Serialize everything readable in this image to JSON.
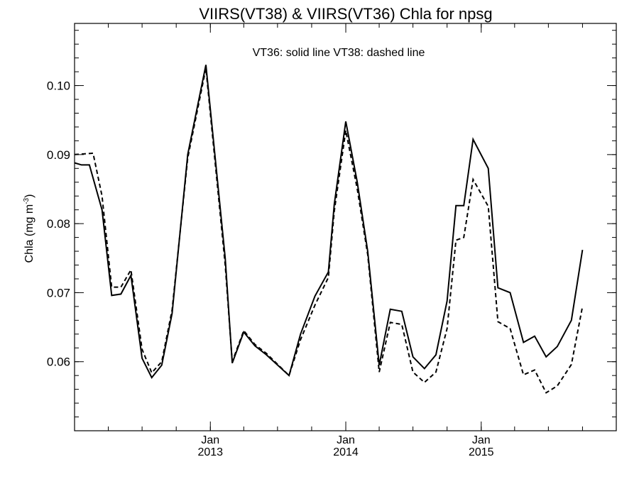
{
  "chart_data": {
    "type": "line",
    "title": "VIIRS(VT38) & VIIRS(VT36)  Chla for npsg",
    "annotation": "VT36: solid line   VT38: dashed line",
    "ylabel_main": "Chla (mg m",
    "ylabel_sup": "-3",
    "ylabel_close": ")",
    "ylim": [
      0.05,
      0.109
    ],
    "y_ticks": [
      {
        "value": 0.06,
        "label": "0.06"
      },
      {
        "value": 0.07,
        "label": "0.07"
      },
      {
        "value": 0.08,
        "label": "0.08"
      },
      {
        "value": 0.09,
        "label": "0.09"
      },
      {
        "value": 0.1,
        "label": "0.10"
      }
    ],
    "x_start": "2012-01-01",
    "x_end": "2015-12-31",
    "x_major_ticks": [
      {
        "date": "2013-01-01",
        "month": "Jan",
        "year": "2013"
      },
      {
        "date": "2014-01-01",
        "month": "Jan",
        "year": "2014"
      },
      {
        "date": "2015-01-01",
        "month": "Jan",
        "year": "2015"
      }
    ],
    "series": [
      {
        "name": "VT36",
        "style": "solid",
        "color": "#000000",
        "points": [
          [
            "2012-01-01",
            0.0888
          ],
          [
            "2012-01-20",
            0.0885
          ],
          [
            "2012-02-10",
            0.0885
          ],
          [
            "2012-03-15",
            0.082
          ],
          [
            "2012-04-10",
            0.0696
          ],
          [
            "2012-05-05",
            0.0698
          ],
          [
            "2012-06-01",
            0.0725
          ],
          [
            "2012-07-01",
            0.0605
          ],
          [
            "2012-07-27",
            0.0577
          ],
          [
            "2012-08-23",
            0.0595
          ],
          [
            "2012-09-20",
            0.067
          ],
          [
            "2012-11-01",
            0.09
          ],
          [
            "2012-12-20",
            0.103
          ],
          [
            "2013-02-10",
            0.075
          ],
          [
            "2013-03-01",
            0.0598
          ],
          [
            "2013-04-01",
            0.0643
          ],
          [
            "2013-05-01",
            0.0623
          ],
          [
            "2013-06-01",
            0.061
          ],
          [
            "2013-08-01",
            0.058
          ],
          [
            "2013-09-01",
            0.064
          ],
          [
            "2013-10-10",
            0.0695
          ],
          [
            "2013-11-15",
            0.073
          ],
          [
            "2013-12-01",
            0.0828
          ],
          [
            "2014-01-01",
            0.0948
          ],
          [
            "2014-02-01",
            0.086
          ],
          [
            "2014-03-01",
            0.076
          ],
          [
            "2014-04-01",
            0.0595
          ],
          [
            "2014-05-01",
            0.0676
          ],
          [
            "2014-06-01",
            0.0673
          ],
          [
            "2014-07-01",
            0.0607
          ],
          [
            "2014-08-01",
            0.059
          ],
          [
            "2014-09-01",
            0.061
          ],
          [
            "2014-10-01",
            0.0688
          ],
          [
            "2014-10-25",
            0.0826
          ],
          [
            "2014-11-15",
            0.0826
          ],
          [
            "2014-12-10",
            0.0922
          ],
          [
            "2015-01-20",
            0.088
          ],
          [
            "2015-02-15",
            0.0707
          ],
          [
            "2015-03-20",
            0.07
          ],
          [
            "2015-04-25",
            0.0628
          ],
          [
            "2015-05-25",
            0.0637
          ],
          [
            "2015-06-25",
            0.0607
          ],
          [
            "2015-07-25",
            0.0622
          ],
          [
            "2015-09-01",
            0.066
          ],
          [
            "2015-10-01",
            0.0762
          ]
        ]
      },
      {
        "name": "VT38",
        "style": "dashed",
        "color": "#000000",
        "points": [
          [
            "2012-01-01",
            0.09
          ],
          [
            "2012-02-20",
            0.0902
          ],
          [
            "2012-03-15",
            0.084
          ],
          [
            "2012-04-10",
            0.0708
          ],
          [
            "2012-05-05",
            0.0708
          ],
          [
            "2012-06-01",
            0.0733
          ],
          [
            "2012-07-01",
            0.0618
          ],
          [
            "2012-07-27",
            0.0584
          ],
          [
            "2012-08-23",
            0.06
          ],
          [
            "2012-09-20",
            0.0675
          ],
          [
            "2012-11-01",
            0.0895
          ],
          [
            "2012-12-20",
            0.1025
          ],
          [
            "2013-02-10",
            0.074
          ],
          [
            "2013-03-01",
            0.06
          ],
          [
            "2013-04-01",
            0.0645
          ],
          [
            "2013-05-01",
            0.0625
          ],
          [
            "2013-06-01",
            0.0612
          ],
          [
            "2013-08-01",
            0.058
          ],
          [
            "2013-09-01",
            0.0632
          ],
          [
            "2013-10-10",
            0.0682
          ],
          [
            "2013-11-15",
            0.0722
          ],
          [
            "2013-12-01",
            0.0818
          ],
          [
            "2014-01-01",
            0.0935
          ],
          [
            "2014-02-01",
            0.085
          ],
          [
            "2014-03-01",
            0.0755
          ],
          [
            "2014-04-01",
            0.0585
          ],
          [
            "2014-05-01",
            0.0657
          ],
          [
            "2014-06-01",
            0.0654
          ],
          [
            "2014-07-01",
            0.0585
          ],
          [
            "2014-08-01",
            0.057
          ],
          [
            "2014-09-01",
            0.0585
          ],
          [
            "2014-10-01",
            0.0648
          ],
          [
            "2014-10-25",
            0.0776
          ],
          [
            "2014-11-15",
            0.078
          ],
          [
            "2014-12-10",
            0.0864
          ],
          [
            "2015-01-20",
            0.0825
          ],
          [
            "2015-02-15",
            0.0658
          ],
          [
            "2015-03-20",
            0.0648
          ],
          [
            "2015-04-25",
            0.0581
          ],
          [
            "2015-05-25",
            0.0588
          ],
          [
            "2015-06-25",
            0.0555
          ],
          [
            "2015-07-25",
            0.0565
          ],
          [
            "2015-09-01",
            0.0596
          ],
          [
            "2015-10-01",
            0.068
          ]
        ]
      }
    ],
    "grid": false
  }
}
